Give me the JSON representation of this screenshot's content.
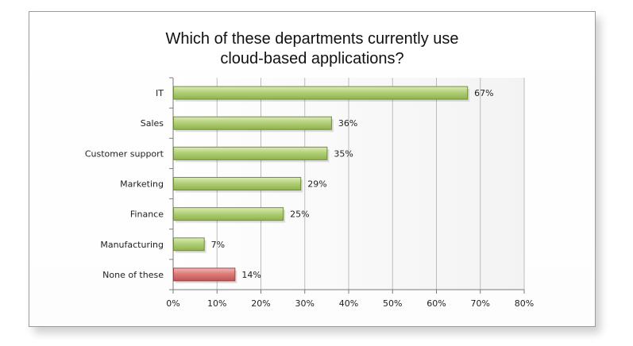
{
  "chart_data": {
    "type": "bar",
    "orientation": "horizontal",
    "title": "Which of these departments currently use\ncloud-based applications?",
    "categories": [
      "IT",
      "Sales",
      "Customer support",
      "Marketing",
      "Finance",
      "Manufacturing",
      "None of these"
    ],
    "values": [
      67,
      36,
      35,
      29,
      25,
      7,
      14
    ],
    "data_labels": [
      "67%",
      "36%",
      "35%",
      "29%",
      "25%",
      "7%",
      "14%"
    ],
    "xlim": [
      0,
      80
    ],
    "x_ticks": [
      "0%",
      "10%",
      "20%",
      "30%",
      "40%",
      "50%",
      "60%",
      "70%",
      "80%"
    ],
    "grid": true,
    "colors": {
      "bar": "#a9c96a",
      "bar_highlight": "#d97a78",
      "bar_edge": "#6f8f3a",
      "highlight_edge": "#a04442",
      "grid": "#bcbcbc"
    },
    "highlighted_category": "None of these"
  }
}
